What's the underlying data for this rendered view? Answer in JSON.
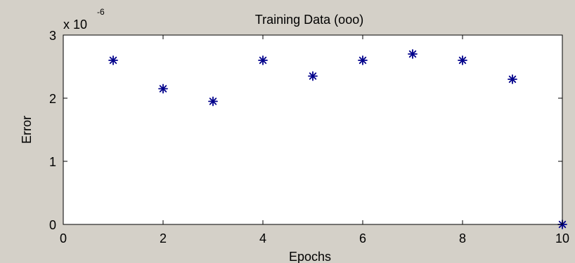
{
  "chart_data": {
    "type": "scatter",
    "title": "Training Data (ooo)",
    "xlabel": "Epochs",
    "ylabel": "Error",
    "y_exponent_label": "x 10",
    "y_exponent": "-6",
    "xlim": [
      0,
      10
    ],
    "ylim": [
      0,
      3
    ],
    "xticks": [
      0,
      2,
      4,
      6,
      8,
      10
    ],
    "yticks": [
      0,
      1,
      2,
      3
    ],
    "grid": false,
    "marker": "*",
    "marker_color": "#00008b",
    "points": [
      {
        "x": 1,
        "y": 2.6
      },
      {
        "x": 2,
        "y": 2.15
      },
      {
        "x": 3,
        "y": 1.95
      },
      {
        "x": 4,
        "y": 2.6
      },
      {
        "x": 5,
        "y": 2.35
      },
      {
        "x": 6,
        "y": 2.6
      },
      {
        "x": 7,
        "y": 2.7
      },
      {
        "x": 8,
        "y": 2.6
      },
      {
        "x": 9,
        "y": 2.3
      },
      {
        "x": 10,
        "y": 0
      }
    ]
  },
  "colors": {
    "figure_background": "#d4d0c8",
    "axes_background": "#ffffff"
  }
}
